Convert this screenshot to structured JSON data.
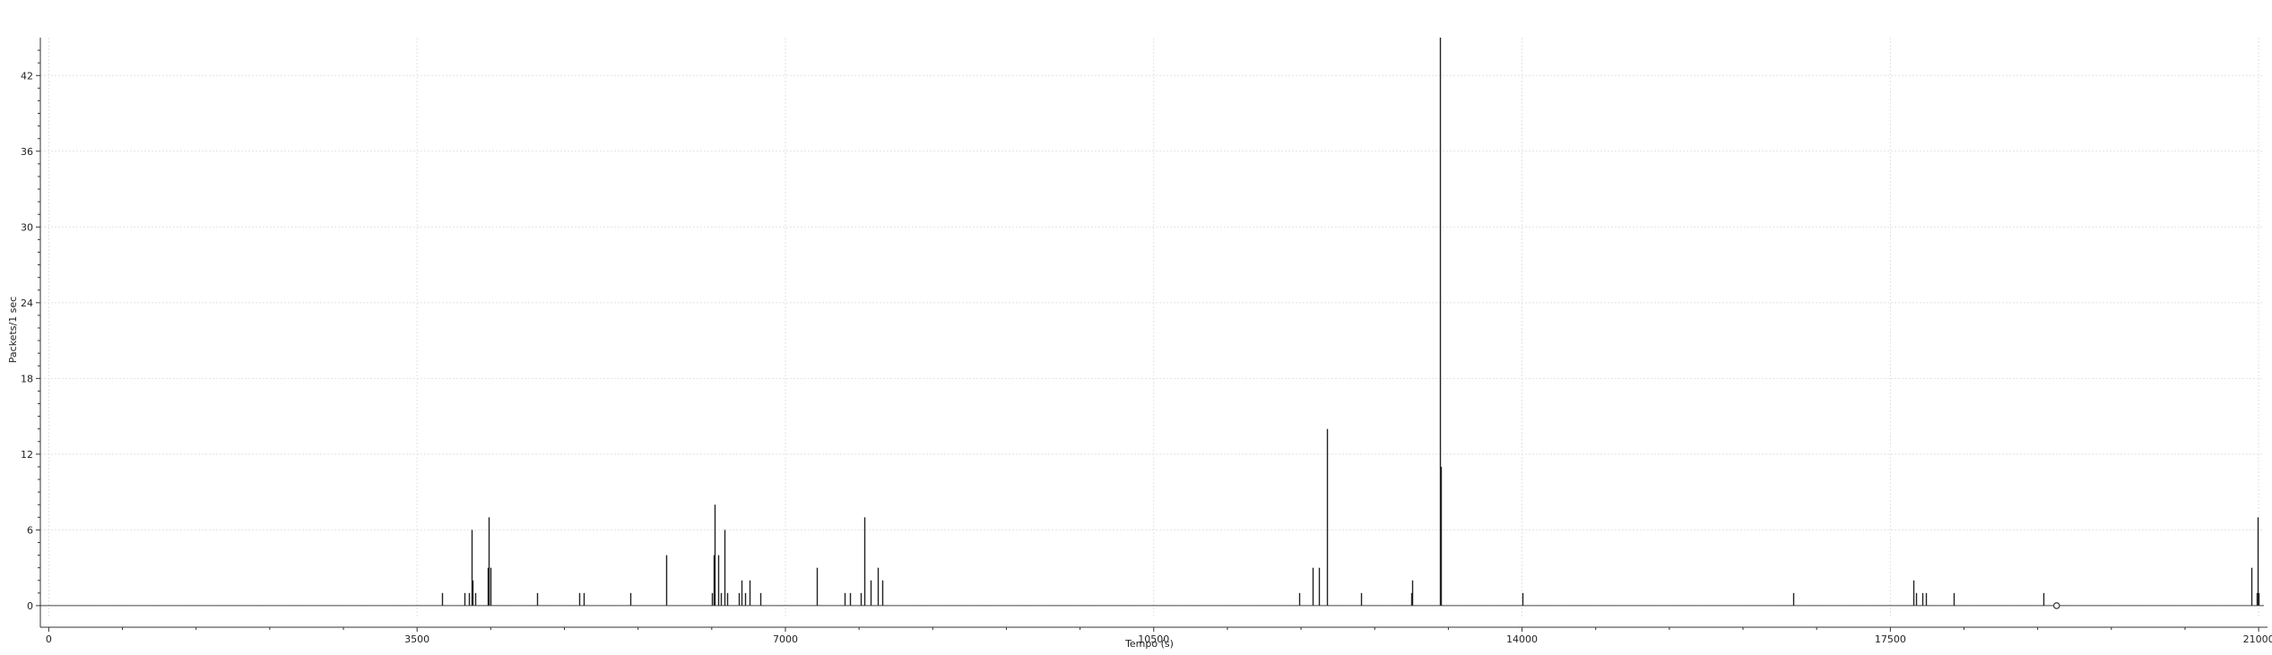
{
  "chart_data": {
    "type": "bar",
    "title": "",
    "xlabel": "Tempo (s)",
    "ylabel": "Packets/1 sec",
    "xlim": [
      -80,
      21050
    ],
    "ylim": [
      -1,
      45
    ],
    "xticks": [
      0,
      3500,
      7000,
      10500,
      14000,
      17500,
      21000
    ],
    "xtick_labels": [
      "0",
      "3500",
      "7000",
      "10500",
      "14000",
      "17500",
      "21000"
    ],
    "yticks": [
      0,
      6,
      12,
      18,
      24,
      30,
      36,
      42
    ],
    "ytick_labels": [
      "0",
      "6",
      "12",
      "18",
      "24",
      "30",
      "36",
      "42"
    ],
    "grid": true,
    "series": [
      {
        "name": "Packets/1 sec",
        "points": [
          [
            3740,
            1
          ],
          [
            3950,
            1
          ],
          [
            3990,
            1
          ],
          [
            4020,
            6
          ],
          [
            4030,
            2
          ],
          [
            4050,
            1
          ],
          [
            4170,
            3
          ],
          [
            4180,
            7
          ],
          [
            4200,
            3
          ],
          [
            4640,
            1
          ],
          [
            5040,
            1
          ],
          [
            5080,
            1
          ],
          [
            5530,
            1
          ],
          [
            5870,
            4
          ],
          [
            6300,
            1
          ],
          [
            6320,
            4
          ],
          [
            6330,
            8
          ],
          [
            6360,
            4
          ],
          [
            6390,
            1
          ],
          [
            6420,
            6
          ],
          [
            6450,
            1
          ],
          [
            6560,
            1
          ],
          [
            6580,
            2
          ],
          [
            6620,
            1
          ],
          [
            6660,
            2
          ],
          [
            6760,
            1
          ],
          [
            7300,
            3
          ],
          [
            7560,
            1
          ],
          [
            7610,
            1
          ],
          [
            7720,
            1
          ],
          [
            7750,
            7
          ],
          [
            7810,
            2
          ],
          [
            7880,
            3
          ],
          [
            7920,
            2
          ],
          [
            11880,
            1
          ],
          [
            12010,
            3
          ],
          [
            12070,
            3
          ],
          [
            12150,
            14
          ],
          [
            12470,
            1
          ],
          [
            12950,
            1
          ],
          [
            12960,
            2
          ],
          [
            13220,
            45
          ],
          [
            13230,
            11
          ],
          [
            14000,
            1
          ],
          [
            16580,
            1
          ],
          [
            17720,
            2
          ],
          [
            17740,
            1
          ],
          [
            17800,
            1
          ],
          [
            17840,
            1
          ],
          [
            18100,
            1
          ],
          [
            18950,
            1
          ],
          [
            20930,
            3
          ],
          [
            20980,
            1
          ],
          [
            20990,
            7
          ],
          [
            21000,
            1
          ]
        ]
      }
    ],
    "marker": {
      "label": "o",
      "x": 19080,
      "y": 0
    }
  }
}
